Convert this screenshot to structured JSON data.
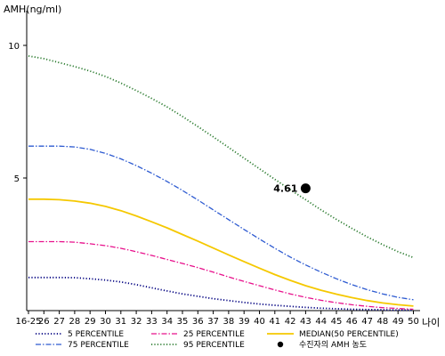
{
  "chart_data": {
    "type": "line",
    "ylabel": "AMH(ng/ml)",
    "xlabel": "나이",
    "x_ticks": [
      "16-25",
      "26",
      "27",
      "28",
      "29",
      "30",
      "31",
      "32",
      "33",
      "34",
      "35",
      "36",
      "37",
      "38",
      "39",
      "40",
      "41",
      "42",
      "43",
      "44",
      "45",
      "46",
      "47",
      "48",
      "49",
      "50"
    ],
    "y_ticks": [
      5,
      10
    ],
    "ylim": [
      0,
      11.2
    ],
    "series": [
      {
        "name": "5 PERCENTILE",
        "color": "#000080",
        "dash": "dotted",
        "values": [
          1.25,
          1.25,
          1.25,
          1.24,
          1.2,
          1.15,
          1.08,
          0.98,
          0.86,
          0.74,
          0.63,
          0.54,
          0.45,
          0.38,
          0.31,
          0.25,
          0.2,
          0.16,
          0.12,
          0.09,
          0.07,
          0.05,
          0.04,
          0.03,
          0.02,
          0.02
        ]
      },
      {
        "name": "25 PERCENTILE",
        "color": "#e8118c",
        "dash": "dashdot",
        "values": [
          2.6,
          2.6,
          2.6,
          2.58,
          2.52,
          2.45,
          2.35,
          2.22,
          2.08,
          1.93,
          1.78,
          1.62,
          1.45,
          1.27,
          1.1,
          0.94,
          0.78,
          0.63,
          0.5,
          0.39,
          0.3,
          0.22,
          0.16,
          0.11,
          0.08,
          0.05
        ]
      },
      {
        "name": "MEDIAN(50 PERCENTILE)",
        "color": "#f5c800",
        "dash": "solid",
        "values": [
          4.2,
          4.2,
          4.18,
          4.13,
          4.05,
          3.93,
          3.77,
          3.57,
          3.35,
          3.12,
          2.87,
          2.62,
          2.36,
          2.1,
          1.85,
          1.6,
          1.36,
          1.14,
          0.94,
          0.77,
          0.62,
          0.49,
          0.38,
          0.29,
          0.22,
          0.17
        ]
      },
      {
        "name": "75 PERCENTILE",
        "color": "#2e5bd1",
        "dash": "dashdot",
        "values": [
          6.2,
          6.2,
          6.2,
          6.17,
          6.08,
          5.93,
          5.72,
          5.47,
          5.18,
          4.87,
          4.53,
          4.17,
          3.8,
          3.43,
          3.06,
          2.7,
          2.35,
          2.02,
          1.72,
          1.45,
          1.2,
          0.98,
          0.79,
          0.63,
          0.5,
          0.41
        ]
      },
      {
        "name": "95 PERCENTILE",
        "color": "#2e7d32",
        "dash": "dotted",
        "values": [
          9.6,
          9.5,
          9.35,
          9.2,
          9.03,
          8.83,
          8.58,
          8.3,
          8.0,
          7.68,
          7.32,
          6.94,
          6.55,
          6.15,
          5.75,
          5.35,
          4.95,
          4.56,
          4.18,
          3.8,
          3.44,
          3.1,
          2.78,
          2.49,
          2.22,
          2.0
        ]
      }
    ],
    "patient_point": {
      "name": "수진자의 AMH 농도",
      "x": "43",
      "y": 4.61,
      "label": "4.61",
      "color": "#000000"
    },
    "legend": {
      "placement": "bottom",
      "order": [
        "5 PERCENTILE",
        "25 PERCENTILE",
        "MEDIAN(50 PERCENTILE)",
        "75 PERCENTILE",
        "95 PERCENTILE",
        "수진자의 AMH 농도"
      ]
    },
    "grid": false
  }
}
